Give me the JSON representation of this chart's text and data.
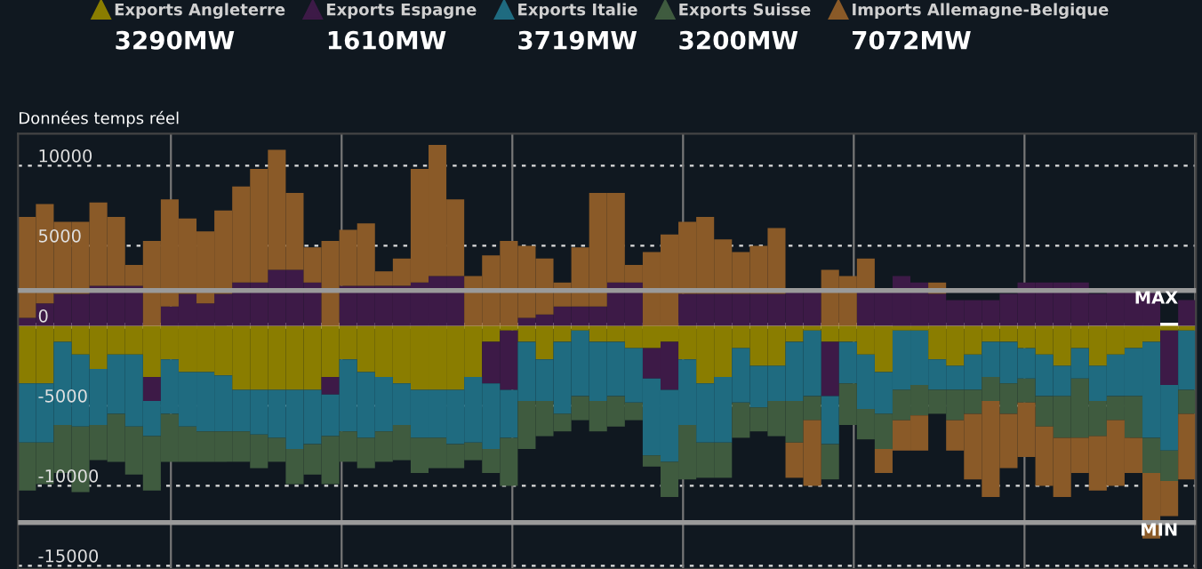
{
  "chart_data": {
    "type": "bar",
    "stacked": true,
    "title": "Données temps réel",
    "categories": [
      null,
      null,
      null,
      null,
      null,
      null,
      null,
      null,
      null,
      null,
      null,
      null,
      null,
      null,
      null,
      null,
      null,
      null,
      null,
      null,
      null,
      null,
      null,
      null,
      null,
      null,
      null,
      null,
      null,
      null,
      null,
      null,
      null,
      null,
      null,
      null,
      null,
      null,
      null,
      null,
      null,
      null,
      null,
      null,
      null,
      null,
      null,
      null,
      null,
      null,
      null,
      null,
      null,
      null,
      null,
      null,
      null,
      null,
      null,
      null,
      null,
      null,
      null,
      null,
      null,
      null
    ],
    "series": [
      {
        "name": "Exports Angleterre",
        "color": "#8a7d00",
        "values": [
          -3600,
          -3600,
          -1000,
          -1800,
          -2700,
          -1800,
          -1800,
          -3200,
          -2100,
          -2900,
          -2900,
          -3100,
          -4000,
          -4000,
          -4000,
          -4000,
          -4000,
          -3200,
          -2100,
          -2900,
          -3200,
          -3600,
          -4000,
          -4000,
          -4000,
          -3200,
          -1000,
          -300,
          -1000,
          -2100,
          -1000,
          -300,
          -1000,
          -1000,
          -1400,
          -1400,
          -1000,
          -2100,
          -3600,
          -3200,
          -1400,
          -2500,
          -2500,
          -1000,
          -300,
          -1000,
          -1000,
          -1800,
          -2900,
          -300,
          -300,
          -2100,
          -2500,
          -1800,
          -1000,
          -1000,
          -1400,
          -1800,
          -2500,
          -1400,
          -2500,
          -1800,
          -1400,
          -1000,
          -300,
          -300
        ]
      },
      {
        "name": "Exports Espagne",
        "color": "#3d1a47",
        "values": [
          500,
          1400,
          2000,
          2000,
          2500,
          2500,
          2500,
          -1500,
          1200,
          2000,
          1400,
          2000,
          2700,
          2700,
          3500,
          3500,
          2700,
          -1100,
          2500,
          2500,
          2500,
          2500,
          2700,
          3100,
          3100,
          0,
          -2600,
          -3700,
          500,
          700,
          1200,
          1200,
          1200,
          2700,
          2700,
          -1900,
          -3000,
          2000,
          2000,
          2000,
          2000,
          2000,
          2000,
          2300,
          2300,
          -3400,
          0,
          2300,
          2300,
          3100,
          2700,
          2000,
          1600,
          1600,
          1600,
          2000,
          2700,
          2700,
          2700,
          2700,
          2000,
          2300,
          2300,
          2300,
          -3400,
          1600
        ]
      },
      {
        "name": "Exports Italie",
        "color": "#1f6b80",
        "values": [
          -3700,
          -3700,
          -5200,
          -4500,
          -3500,
          -3700,
          -4500,
          -2200,
          -3400,
          -3400,
          -3700,
          -3500,
          -2600,
          -2800,
          -3000,
          -3700,
          -3400,
          -2600,
          -4500,
          -4100,
          -3400,
          -2600,
          -3000,
          -3000,
          -3400,
          -4100,
          -4100,
          -3000,
          -3700,
          -2600,
          -4500,
          -4100,
          -3700,
          -3400,
          -3400,
          -4800,
          -4500,
          -4100,
          -3700,
          -4100,
          -3400,
          -2600,
          -2200,
          -3700,
          -4100,
          -3000,
          -2600,
          -3400,
          -2600,
          -3700,
          -3400,
          -1900,
          -1500,
          -2200,
          -2200,
          -2600,
          -1900,
          -2600,
          -1900,
          -1900,
          -2200,
          -2600,
          -3000,
          -6000,
          -4100,
          -3700
        ]
      },
      {
        "name": "Exports Suisse",
        "color": "#3f5b3f",
        "values": [
          -3000,
          -2600,
          -3000,
          -4100,
          -2200,
          -3000,
          -3000,
          -3400,
          -3000,
          -2200,
          -1900,
          -1900,
          -1900,
          -2100,
          -1500,
          -2200,
          -1900,
          -3000,
          -1900,
          -1900,
          -1900,
          -2200,
          -2200,
          -1900,
          -1500,
          -1100,
          -1500,
          -3000,
          -3000,
          -2200,
          -1100,
          -1500,
          -1900,
          -1900,
          -1100,
          -700,
          -2200,
          -3400,
          -2200,
          -2200,
          -2200,
          -1500,
          -2200,
          -2600,
          -1500,
          -2200,
          -2600,
          -1900,
          -2200,
          -1900,
          -1900,
          -1500,
          -1900,
          -1500,
          -1500,
          -1900,
          -1500,
          -1900,
          -2600,
          -3700,
          -2200,
          -1500,
          -2600,
          -2200,
          -1900,
          -1500
        ]
      },
      {
        "name": "Imports Allemagne-Belgique",
        "color": "#8a5a28",
        "values": [
          6300,
          6200,
          4500,
          4500,
          5200,
          4300,
          1300,
          5300,
          6700,
          4700,
          4500,
          5200,
          6000,
          7100,
          7500,
          4800,
          2200,
          5300,
          3500,
          3900,
          900,
          1700,
          7100,
          8200,
          4800,
          3100,
          4400,
          5300,
          4500,
          3500,
          1500,
          3700,
          7100,
          5600,
          1100,
          4600,
          5700,
          4500,
          4800,
          3400,
          2600,
          3000,
          4100,
          -2200,
          -4100,
          3500,
          3100,
          1900,
          -1500,
          -1900,
          -2200,
          700,
          -1900,
          -4100,
          -6000,
          -3400,
          -3400,
          -3700,
          -3700,
          -2200,
          -3400,
          -4100,
          -2200,
          -4100,
          -2200,
          -4100
        ]
      }
    ],
    "annotations": [
      "3290MW",
      "1610MW",
      "3719MW",
      "3200MW",
      "7072MW"
    ],
    "ylim": [
      -15200,
      12000
    ],
    "yticks": [
      -15000,
      -10000,
      -5000,
      0,
      5000,
      10000
    ],
    "ref_lines": [
      {
        "axis": "y",
        "value": 2200,
        "label": "MAX",
        "color": "#9a9a9a"
      },
      {
        "axis": "y",
        "value": -12300,
        "label": "MIN",
        "color": "#9a9a9a"
      },
      {
        "axis": "y",
        "value": 0,
        "label": null,
        "color": "#ffffff"
      }
    ],
    "grid": true,
    "legend": "top",
    "marker": "triangle"
  }
}
